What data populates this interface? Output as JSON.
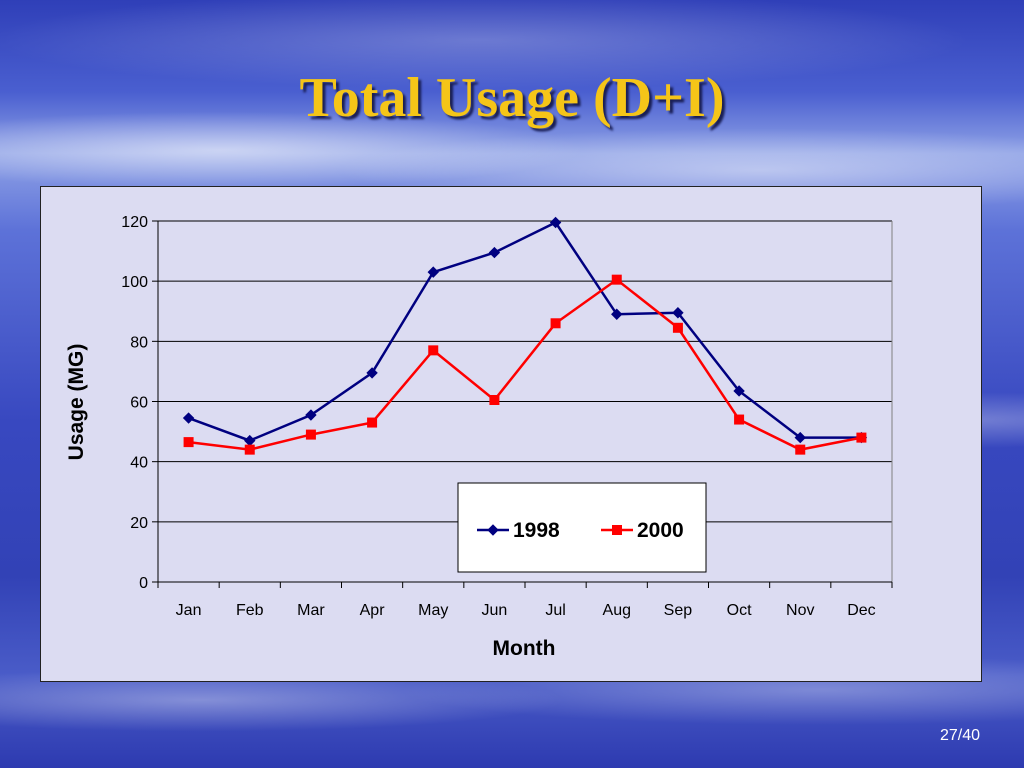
{
  "slide": {
    "title": "Total Usage (D+I)",
    "page_number": "27/40"
  },
  "colors": {
    "title": "#f5c518",
    "plot_background": "#dcdcf2",
    "series_1998": "#000080",
    "series_2000": "#ff0000"
  },
  "chart_data": {
    "type": "line",
    "title": "",
    "xlabel": "Month",
    "ylabel": "Usage (MG)",
    "categories": [
      "Jan",
      "Feb",
      "Mar",
      "Apr",
      "May",
      "Jun",
      "Jul",
      "Aug",
      "Sep",
      "Oct",
      "Nov",
      "Dec"
    ],
    "ylim": [
      0,
      120
    ],
    "yticks": [
      "0",
      "20",
      "40",
      "60",
      "80",
      "100",
      "120"
    ],
    "grid": true,
    "legend_position": "bottom-center",
    "series": [
      {
        "name": "1998",
        "marker": "diamond",
        "values": [
          54.5,
          47,
          55.5,
          69.5,
          103,
          109.5,
          119.5,
          89,
          89.5,
          63.5,
          48,
          48
        ]
      },
      {
        "name": "2000",
        "marker": "square",
        "values": [
          46.5,
          44,
          49,
          53,
          77,
          60.5,
          86,
          100.5,
          84.5,
          54,
          44,
          48
        ]
      }
    ]
  }
}
